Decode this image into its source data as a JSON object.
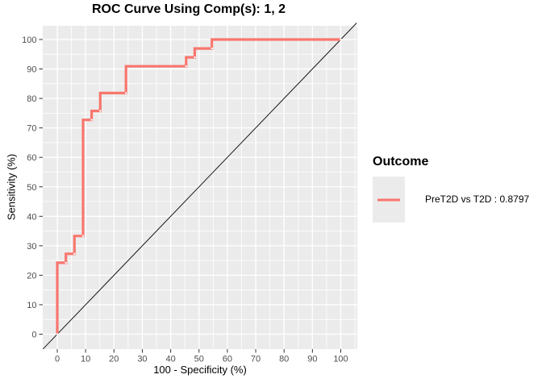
{
  "title": "ROC Curve Using Comp(s): 1, 2",
  "x_axis": {
    "label": "100 - Specificity (%)",
    "ticks": [
      0,
      10,
      20,
      30,
      40,
      50,
      60,
      70,
      80,
      90,
      100
    ]
  },
  "y_axis": {
    "label": "Sensitivity (%)",
    "ticks": [
      0,
      10,
      20,
      30,
      40,
      50,
      60,
      70,
      80,
      90,
      100
    ]
  },
  "legend": {
    "title": "Outcome",
    "items": [
      {
        "label": "PreT2D vs T2D : 0.8797",
        "color": "#F8766D",
        "auc": 0.8797
      }
    ]
  },
  "colors": {
    "background": "#FFFFFF",
    "panel_background": "#EBEBEB",
    "gridline": "#FFFFFF",
    "roc_line": "#F8766D",
    "diagonal_line": "#000000",
    "tick_mark": "#333333",
    "tick_label_text": "#4D4D4D",
    "title_text": "#000000",
    "step_point_marker": "#FFFFFF"
  },
  "chart_data": {
    "type": "line",
    "subtype": "roc-step-curve",
    "title": "ROC Curve Using Comp(s): 1, 2",
    "xlabel": "100 - Specificity (%)",
    "ylabel": "Sensitivity (%)",
    "xlim": [
      -5,
      105.8
    ],
    "ylim": [
      -5,
      104.7
    ],
    "x_ticks": [
      0,
      10,
      20,
      30,
      40,
      50,
      60,
      70,
      80,
      90,
      100
    ],
    "y_ticks": [
      0,
      10,
      20,
      30,
      40,
      50,
      60,
      70,
      80,
      90,
      100
    ],
    "grid": "on: white major gridlines every 10 and minor every 5 on gray panel",
    "legend_position": "right",
    "reference_line": {
      "type": "diagonal y = x",
      "color": "#000000"
    },
    "series": [
      {
        "name": "PreT2D vs T2D : 0.8797",
        "auc": 0.8797,
        "color": "#F8766D",
        "step_vertices": [
          [
            0,
            0
          ],
          [
            0,
            24.24
          ],
          [
            3.03,
            24.24
          ],
          [
            3.03,
            27.27
          ],
          [
            6.06,
            27.27
          ],
          [
            6.06,
            33.33
          ],
          [
            9.09,
            33.33
          ],
          [
            9.09,
            72.73
          ],
          [
            12.12,
            72.73
          ],
          [
            12.12,
            75.76
          ],
          [
            15.15,
            75.76
          ],
          [
            15.15,
            81.82
          ],
          [
            24.24,
            81.82
          ],
          [
            24.24,
            90.91
          ],
          [
            45.45,
            90.91
          ],
          [
            45.45,
            93.94
          ],
          [
            48.48,
            93.94
          ],
          [
            48.48,
            96.97
          ],
          [
            54.55,
            96.97
          ],
          [
            54.55,
            100
          ],
          [
            100,
            100
          ]
        ],
        "point_markers": [
          [
            0,
            0
          ],
          [
            3.03,
            24.24
          ],
          [
            6.06,
            27.27
          ],
          [
            9.09,
            33.33
          ],
          [
            12.12,
            72.73
          ],
          [
            15.15,
            75.76
          ],
          [
            24.24,
            81.82
          ],
          [
            45.45,
            90.91
          ],
          [
            48.48,
            93.94
          ],
          [
            54.55,
            96.97
          ],
          [
            100,
            100
          ]
        ]
      }
    ]
  }
}
